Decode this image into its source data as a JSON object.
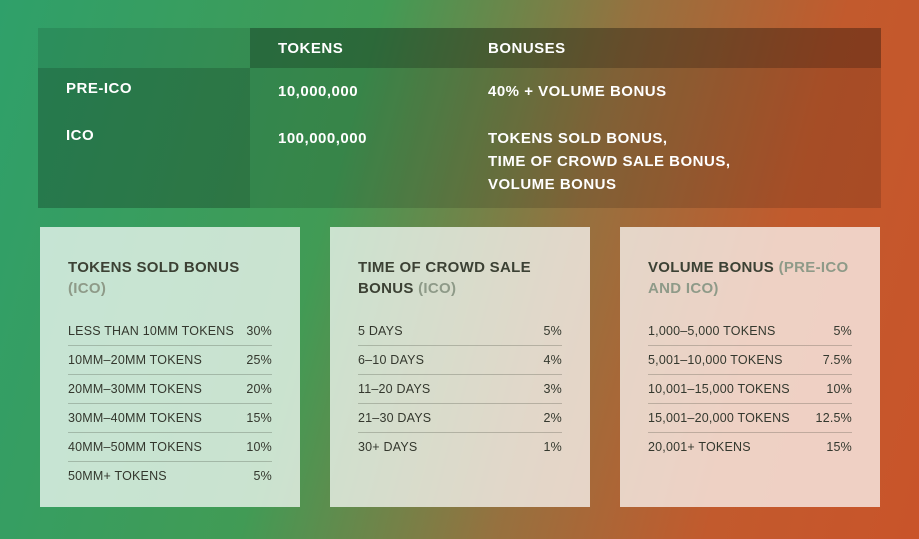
{
  "colors": {
    "bg_gradient_start": "#2fa06a",
    "bg_gradient_end": "#c9542a",
    "table_text": "#ffffff",
    "card_bg": "rgba(255,255,255,0.72)",
    "card_title": "#3c4134",
    "card_note": "#8e9a88"
  },
  "table": {
    "headers": {
      "tokens": "TOKENS",
      "bonuses": "BONUSES"
    },
    "rows": [
      {
        "label": "PRE-ICO",
        "tokens": "10,000,000",
        "bonus_lines": [
          "40% + VOLUME BONUS"
        ]
      },
      {
        "label": "ICO",
        "tokens": "100,000,000",
        "bonus_lines": [
          "TOKENS SOLD BONUS,",
          "TIME OF CROWD SALE BONUS,",
          "VOLUME BONUS"
        ]
      }
    ]
  },
  "cards": [
    {
      "title": "TOKENS SOLD BONUS",
      "note": "(ICO)",
      "rows": [
        {
          "label": "LESS THAN 10MM TOKENS",
          "value": "30%"
        },
        {
          "label": "10MM–20MM TOKENS",
          "value": "25%"
        },
        {
          "label": "20MM–30MM TOKENS",
          "value": "20%"
        },
        {
          "label": "30MM–40MM TOKENS",
          "value": "15%"
        },
        {
          "label": "40MM–50MM TOKENS",
          "value": "10%"
        },
        {
          "label": "50MM+ TOKENS",
          "value": "5%"
        }
      ]
    },
    {
      "title": "TIME OF CROWD SALE BONUS",
      "note": "(ICO)",
      "rows": [
        {
          "label": "5 DAYS",
          "value": "5%"
        },
        {
          "label": "6–10 DAYS",
          "value": "4%"
        },
        {
          "label": "11–20 DAYS",
          "value": "3%"
        },
        {
          "label": "21–30 DAYS",
          "value": "2%"
        },
        {
          "label": "30+ DAYS",
          "value": "1%"
        }
      ]
    },
    {
      "title": "VOLUME BONUS",
      "note": "(PRE-ICO AND ICO)",
      "rows": [
        {
          "label": "1,000–5,000 TOKENS",
          "value": "5%"
        },
        {
          "label": "5,001–10,000 TOKENS",
          "value": "7.5%"
        },
        {
          "label": "10,001–15,000 TOKENS",
          "value": "10%"
        },
        {
          "label": "15,001–20,000 TOKENS",
          "value": "12.5%"
        },
        {
          "label": "20,001+ TOKENS",
          "value": "15%"
        }
      ]
    }
  ]
}
